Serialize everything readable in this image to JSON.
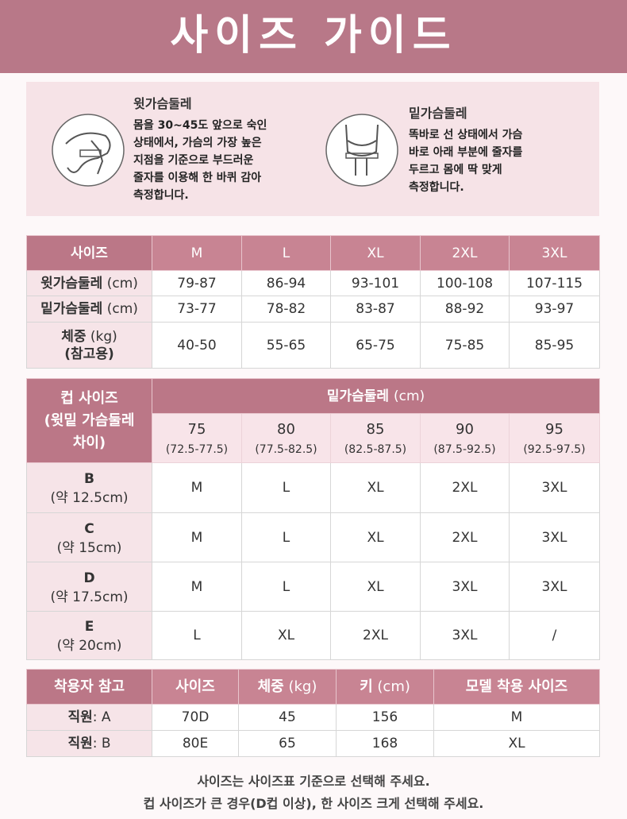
{
  "header": {
    "title": "사이즈 가이드"
  },
  "measure": [
    {
      "title": "윗가슴둘레",
      "lines": [
        "몸을 30~45도 앞으로 숙인",
        "상태에서, 가슴의 가장 높은",
        "지점을 기준으로 부드러운",
        "줄자를 이용해 한 바퀴 감아",
        "측정합니다."
      ]
    },
    {
      "title": "밑가슴둘레",
      "lines": [
        "똑바로 선 상태에서 가슴",
        "바로 아래 부분에 줄자를",
        "두르고 몸에 딱 맞게",
        "측정합니다."
      ]
    }
  ],
  "size_table": {
    "header": [
      "사이즈",
      "M",
      "L",
      "XL",
      "2XL",
      "3XL"
    ],
    "rows": [
      {
        "name": "윗가슴둘레",
        "unit": "(cm)",
        "values": [
          "79-87",
          "86-94",
          "93-101",
          "100-108",
          "107-115"
        ]
      },
      {
        "name": "밑가슴둘레",
        "unit": "(cm)",
        "values": [
          "73-77",
          "78-82",
          "83-87",
          "88-92",
          "93-97"
        ]
      },
      {
        "name": "체중",
        "unit": "(kg)",
        "note": "(참고용)",
        "values": [
          "40-50",
          "55-65",
          "65-75",
          "75-85",
          "85-95"
        ]
      }
    ]
  },
  "cup_table": {
    "corner": [
      "컵 사이즈",
      "(윗밑 가슴둘레",
      "차이)"
    ],
    "group_header": {
      "name": "밑가슴둘레",
      "unit": "(cm)"
    },
    "columns": [
      {
        "size": "75",
        "range": "(72.5-77.5)"
      },
      {
        "size": "80",
        "range": "(77.5-82.5)"
      },
      {
        "size": "85",
        "range": "(82.5-87.5)"
      },
      {
        "size": "90",
        "range": "(87.5-92.5)"
      },
      {
        "size": "95",
        "range": "(92.5-97.5)"
      }
    ],
    "rows": [
      {
        "cup": "B",
        "diff": "(약 12.5cm)",
        "values": [
          "M",
          "L",
          "XL",
          "2XL",
          "3XL"
        ]
      },
      {
        "cup": "C",
        "diff": "(약 15cm)",
        "values": [
          "M",
          "L",
          "XL",
          "2XL",
          "3XL"
        ]
      },
      {
        "cup": "D",
        "diff": "(약 17.5cm)",
        "values": [
          "M",
          "L",
          "XL",
          "3XL",
          "3XL"
        ]
      },
      {
        "cup": "E",
        "diff": "(약 20cm)",
        "values": [
          "L",
          "XL",
          "2XL",
          "3XL",
          "/"
        ]
      }
    ]
  },
  "wearer_table": {
    "header": [
      {
        "name": "착용자 참고"
      },
      {
        "name": "사이즈"
      },
      {
        "name": "체중",
        "unit": "(kg)"
      },
      {
        "name": "키",
        "unit": "(cm)"
      },
      {
        "name": "모델 착용 사이즈"
      }
    ],
    "rows": [
      {
        "name": "직원",
        "suffix": ": A",
        "values": [
          "70D",
          "45",
          "156",
          "M"
        ]
      },
      {
        "name": "직원",
        "suffix": ": B",
        "values": [
          "80E",
          "65",
          "168",
          "XL"
        ]
      }
    ]
  },
  "footer": [
    "사이즈는 사이즈표 기준으로 선택해 주세요.",
    "컵 사이즈가 큰 경우(D컵 이상), 한 사이즈 크게 선택해 주세요."
  ]
}
